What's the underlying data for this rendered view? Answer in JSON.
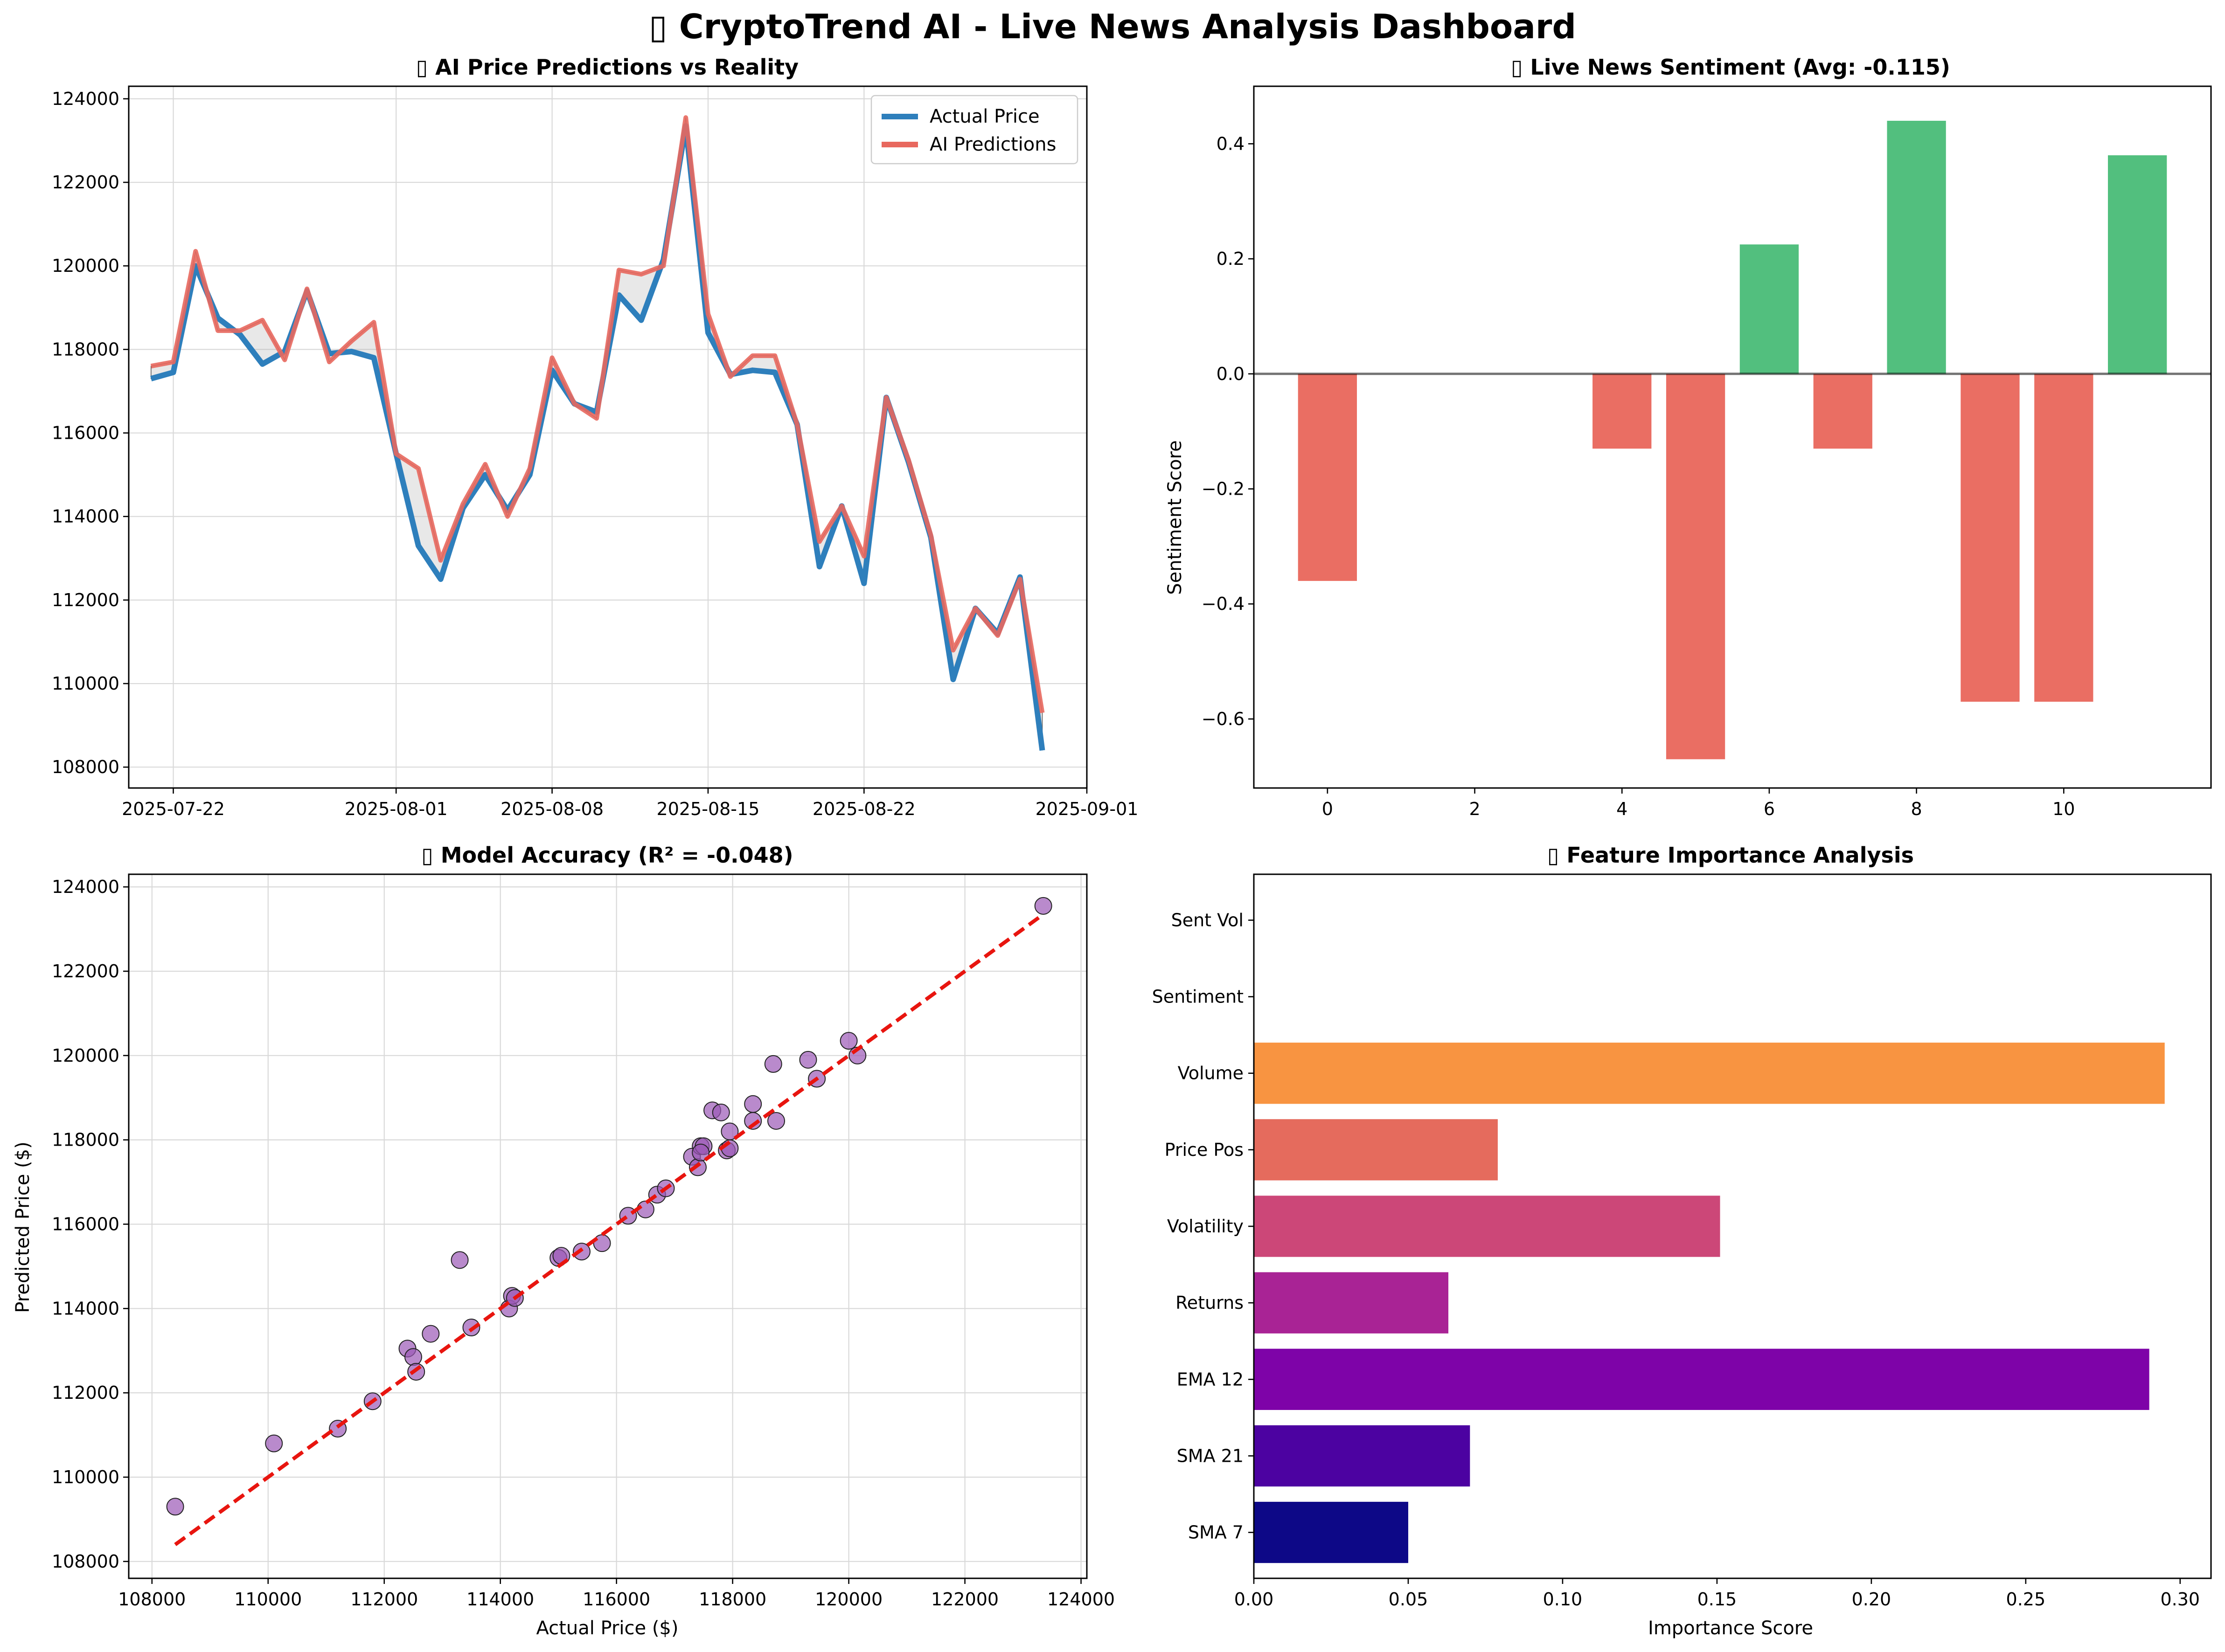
{
  "figure": {
    "title": "▯ CryptoTrend AI - Live News Analysis Dashboard"
  },
  "colors": {
    "actual": "#2e7fbc",
    "predicted": "#e8685e",
    "positive": "#52bf7e",
    "negative": "#ea6e63",
    "scatter": "#9b59b6",
    "fit_line": "#e8150f"
  },
  "chart_data": [
    {
      "type": "line",
      "title": "▯ AI Price Predictions vs Reality",
      "x_type": "date",
      "xlim": [
        "2025-07-20",
        "2025-09-01"
      ],
      "x_ticks": [
        "2025-07-22",
        "2025-08-01",
        "2025-08-08",
        "2025-08-15",
        "2025-08-22",
        "2025-09-01"
      ],
      "ylim": [
        107500,
        124300
      ],
      "y_ticks": [
        108000,
        110000,
        112000,
        114000,
        116000,
        118000,
        120000,
        122000,
        124000
      ],
      "grid": true,
      "legend_position": "top-right",
      "x": [
        "2025-07-21",
        "2025-07-22",
        "2025-07-23",
        "2025-07-24",
        "2025-07-25",
        "2025-07-26",
        "2025-07-27",
        "2025-07-28",
        "2025-07-29",
        "2025-07-30",
        "2025-07-31",
        "2025-08-01",
        "2025-08-02",
        "2025-08-03",
        "2025-08-04",
        "2025-08-05",
        "2025-08-06",
        "2025-08-07",
        "2025-08-08",
        "2025-08-09",
        "2025-08-10",
        "2025-08-11",
        "2025-08-12",
        "2025-08-13",
        "2025-08-14",
        "2025-08-15",
        "2025-08-16",
        "2025-08-17",
        "2025-08-18",
        "2025-08-19",
        "2025-08-20",
        "2025-08-21",
        "2025-08-22",
        "2025-08-23",
        "2025-08-24",
        "2025-08-25",
        "2025-08-26",
        "2025-08-27",
        "2025-08-28",
        "2025-08-29",
        "2025-08-30",
        "2025-08-31"
      ],
      "series": [
        {
          "name": "Actual Price",
          "color": "#2e7fbc",
          "values": [
            117300,
            117450,
            120000,
            118750,
            118350,
            117650,
            117950,
            119400,
            117900,
            117950,
            117800,
            115500,
            113300,
            112500,
            114200,
            115000,
            114150,
            115000,
            117500,
            116700,
            116500,
            119300,
            118700,
            120150,
            123350,
            118400,
            117400,
            117500,
            117450,
            116200,
            112800,
            114250,
            112400,
            116850,
            115300,
            113500,
            110100,
            111800,
            111200,
            112550,
            108400,
            null
          ]
        },
        {
          "name": "AI Predictions",
          "color": "#e8685e",
          "values": [
            117600,
            117700,
            120350,
            118450,
            118450,
            118700,
            117750,
            119450,
            117700,
            118200,
            118650,
            115500,
            115150,
            112950,
            114300,
            115250,
            114000,
            115150,
            117800,
            116700,
            116350,
            119900,
            119800,
            120000,
            123550,
            118850,
            117350,
            117850,
            117850,
            116200,
            113400,
            114250,
            113050,
            116850,
            115350,
            113550,
            110800,
            111800,
            111150,
            112500,
            109300,
            null
          ]
        }
      ]
    },
    {
      "type": "bar",
      "title": "▯ Live News Sentiment (Avg: -0.115)",
      "ylabel": "Sentiment Score",
      "xlim": [
        -1,
        12
      ],
      "x_ticks": [
        0,
        2,
        4,
        6,
        8,
        10
      ],
      "ylim": [
        -0.72,
        0.5
      ],
      "y_ticks": [
        -0.6,
        -0.4,
        -0.2,
        0.0,
        0.2,
        0.4
      ],
      "y_tick_labels": [
        "−0.6",
        "−0.4",
        "−0.2",
        "0.0",
        "0.2",
        "0.4"
      ],
      "x": [
        0,
        4,
        5,
        6,
        7,
        8,
        9,
        10,
        11
      ],
      "values": [
        -0.36,
        -0.13,
        -0.67,
        0.225,
        -0.13,
        0.44,
        -0.57,
        -0.57,
        0.38
      ],
      "zero_line": true
    },
    {
      "type": "scatter",
      "title": "▯ Model Accuracy (R² = -0.048)",
      "xlabel": "Actual Price ($)",
      "ylabel": "Predicted Price ($)",
      "xlim": [
        107600,
        124100
      ],
      "ylim": [
        107600,
        124300
      ],
      "x_ticks": [
        108000,
        110000,
        112000,
        114000,
        116000,
        118000,
        120000,
        122000,
        124000
      ],
      "y_ticks": [
        108000,
        110000,
        112000,
        114000,
        116000,
        118000,
        120000,
        122000,
        124000
      ],
      "grid": true,
      "fit_line": [
        [
          108400,
          108400
        ],
        [
          123350,
          123350
        ]
      ],
      "points": [
        [
          108400,
          109300
        ],
        [
          110100,
          110800
        ],
        [
          111200,
          111150
        ],
        [
          111800,
          111800
        ],
        [
          112400,
          113050
        ],
        [
          112500,
          112850
        ],
        [
          112550,
          112500
        ],
        [
          112800,
          113400
        ],
        [
          113300,
          115150
        ],
        [
          113500,
          113550
        ],
        [
          114150,
          114000
        ],
        [
          114200,
          114300
        ],
        [
          114250,
          114250
        ],
        [
          115000,
          115200
        ],
        [
          115050,
          115250
        ],
        [
          115400,
          115350
        ],
        [
          115750,
          115550
        ],
        [
          116200,
          116200
        ],
        [
          116500,
          116350
        ],
        [
          116700,
          116700
        ],
        [
          116850,
          116850
        ],
        [
          117300,
          117600
        ],
        [
          117400,
          117350
        ],
        [
          117450,
          117850
        ],
        [
          117500,
          117850
        ],
        [
          117450,
          117700
        ],
        [
          117650,
          118700
        ],
        [
          117800,
          118650
        ],
        [
          117900,
          117750
        ],
        [
          117950,
          118200
        ],
        [
          117950,
          117800
        ],
        [
          118350,
          118450
        ],
        [
          118350,
          118850
        ],
        [
          118700,
          119800
        ],
        [
          118750,
          118450
        ],
        [
          119300,
          119900
        ],
        [
          119450,
          119450
        ],
        [
          120000,
          120350
        ],
        [
          120150,
          120000
        ],
        [
          123350,
          123550
        ]
      ]
    },
    {
      "type": "bar",
      "orientation": "horizontal",
      "title": "▯ Feature Importance Analysis",
      "xlabel": "Importance Score",
      "xlim": [
        0,
        0.31
      ],
      "x_ticks": [
        0.0,
        0.05,
        0.1,
        0.15,
        0.2,
        0.25,
        0.3
      ],
      "x_tick_labels": [
        "0.00",
        "0.05",
        "0.10",
        "0.15",
        "0.20",
        "0.25",
        "0.30"
      ],
      "categories": [
        "SMA 7",
        "SMA 21",
        "EMA 12",
        "Returns",
        "Volatility",
        "Price Pos",
        "Volume",
        "Sentiment",
        "Sent Vol"
      ],
      "values": [
        0.05,
        0.07,
        0.29,
        0.063,
        0.151,
        0.079,
        0.295,
        0.0,
        0.0
      ],
      "colors": [
        "#0d0887",
        "#4c02a1",
        "#7e03a8",
        "#a92395",
        "#cc4778",
        "#e56b5d",
        "#f89441",
        "#fdc328",
        "#f0f921"
      ]
    }
  ]
}
